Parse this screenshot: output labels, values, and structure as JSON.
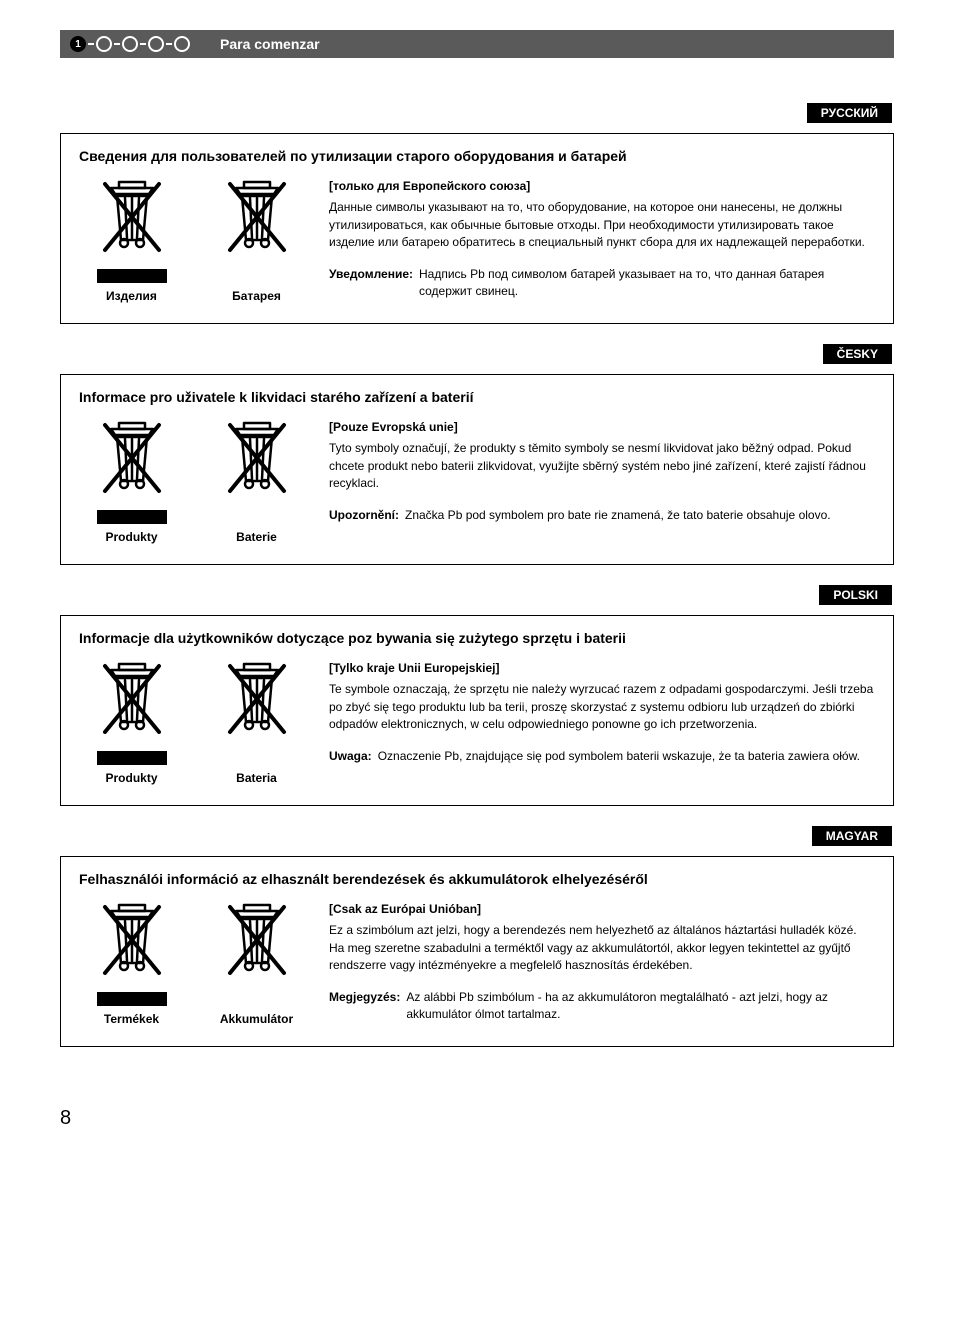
{
  "header": {
    "title": "Para comenzar",
    "active_step": "1"
  },
  "sections": [
    {
      "lang": "РУССКИЙ",
      "title": "Сведения для пользователей по утилизации старого оборудования и батарей",
      "icon1_caption": "Изделия",
      "icon2_caption": "Батарея",
      "subhead": "[только для Европейского союза]",
      "para": "Данные символы указывают на то, что оборудование, на которое они нанесены, не должны утилизироваться, как обычные бытовые отходы. При необходимости утилизировать такое изделие или батарею обратитесь в специальный пункт сбора для их надлежащей переработки.",
      "note_label": "Уведомление:",
      "note_text": "Надпись Pb под символом батарей указывает на то, что данная батарея содержит свинец."
    },
    {
      "lang": "ČESKY",
      "title": "Informace pro uživatele k likvidaci starého zařízení a baterií",
      "icon1_caption": "Produkty",
      "icon2_caption": "Baterie",
      "subhead": "[Pouze Evropská unie]",
      "para": "Tyto symboly označují, že produkty s těmito symboly se nesmí likvidovat jako běžný odpad. Pokud chcete produkt nebo baterii zlikvidovat, využijte sběrný systém nebo jiné zařízení, které zajistí řádnou recyklaci.",
      "note_label": "Upozornění:",
      "note_text": "Značka Pb pod symbolem pro bate rie znamená, že tato baterie obsahuje olovo."
    },
    {
      "lang": "POLSKI",
      "title": "Informacje dla użytkowników dotyczące poz bywania się zużytego sprzętu i baterii",
      "icon1_caption": "Produkty",
      "icon2_caption": "Bateria",
      "subhead": "[Tylko kraje Unii Europejskiej]",
      "para": "Te symbole oznaczają, że sprzętu nie należy wyrzucać razem z odpadami gospodarczymi. Jeśli trzeba po zbyć się tego produktu lub ba terii, proszę skorzystać z systemu odbioru lub urządzeń do zbiórki odpadów elektronicznych, w celu odpowiedniego ponowne go ich przetworzenia.",
      "note_label": "Uwaga:",
      "note_text": "Oznaczenie Pb, znajdujące się pod symbolem baterii wskazuje, że ta bateria zawiera ołów."
    },
    {
      "lang": "MAGYAR",
      "title": "Felhasználói információ az elhasznált berendezések és akkumulátorok elhelyezéséről",
      "icon1_caption": "Termékek",
      "icon2_caption": "Akkumulátor",
      "subhead": "[Csak az Európai Unióban]",
      "para": "Ez a szimbólum azt jelzi, hogy a berendezés nem helyezhető az általános háztartási hulladék közé. Ha meg szeretne szabadulni a terméktől vagy az akkumulátortól, akkor legyen tekintettel az gyűjtő rendszerre vagy intézményekre a megfelelő hasznosítás érdekében.",
      "note_label": "Megjegyzés:",
      "note_text": "Az alábbi Pb szimbólum - ha az akkumulátoron megtalálható - azt jelzi, hogy az akkumulátor ólmot tartalmaz."
    }
  ],
  "page_number": "8"
}
